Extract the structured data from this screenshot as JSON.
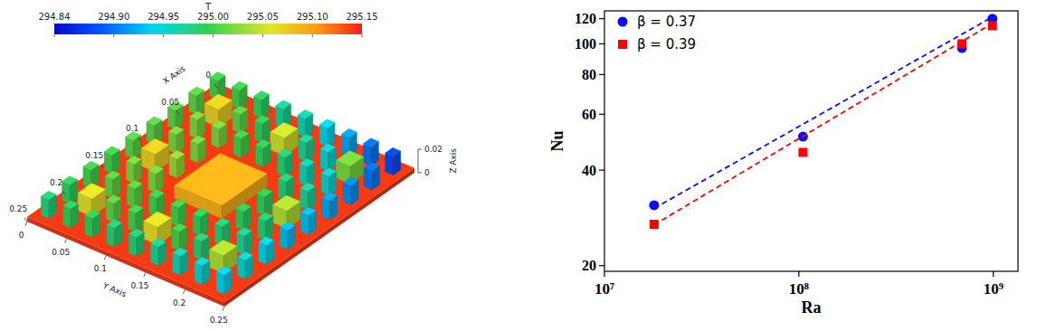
{
  "chart_data": [
    {
      "type": "3d_bar",
      "xlabel": "X Axis",
      "ylabel": "Y Axis",
      "zlabel": "Z Axis",
      "xlim": [
        0,
        0.25
      ],
      "ylim": [
        0,
        0.25
      ],
      "zlim": [
        0,
        0.02
      ],
      "xticks": [
        0,
        0.05,
        0.1,
        0.15,
        0.2,
        0.25
      ],
      "yticks": [
        0,
        0.05,
        0.1,
        0.15,
        0.2,
        0.25
      ],
      "zticks": [
        0,
        0.02
      ],
      "colorbar": {
        "label": "T",
        "range": [
          294.84,
          295.15
        ],
        "ticks": [
          294.84,
          {
            "value": 294.9,
            "label": "294.90"
          },
          294.95,
          {
            "value": 295,
            "label": "295.00"
          },
          295.05,
          {
            "value": 295.1,
            "label": "295.10"
          },
          295.15
        ]
      },
      "base_value": 295.14,
      "blocks": [
        {
          "x": 0.0139,
          "y": 0.0139,
          "size": 0.01,
          "height": 0.02,
          "value": 295.0
        },
        {
          "x": 0.0139,
          "y": 0.0417,
          "size": 0.01,
          "height": 0.02,
          "value": 295.0
        },
        {
          "x": 0.0139,
          "y": 0.0694,
          "size": 0.01,
          "height": 0.02,
          "value": 294.99
        },
        {
          "x": 0.0139,
          "y": 0.0972,
          "size": 0.01,
          "height": 0.02,
          "value": 294.97
        },
        {
          "x": 0.0139,
          "y": 0.125,
          "size": 0.01,
          "height": 0.02,
          "value": 294.96
        },
        {
          "x": 0.0139,
          "y": 0.1528,
          "size": 0.01,
          "height": 0.02,
          "value": 294.94
        },
        {
          "x": 0.0139,
          "y": 0.1806,
          "size": 0.01,
          "height": 0.02,
          "value": 294.92
        },
        {
          "x": 0.0139,
          "y": 0.2083,
          "size": 0.01,
          "height": 0.02,
          "value": 294.9
        },
        {
          "x": 0.0139,
          "y": 0.2361,
          "size": 0.01,
          "height": 0.02,
          "value": 294.88
        },
        {
          "x": 0.0417,
          "y": 0.0139,
          "size": 0.01,
          "height": 0.02,
          "value": 295.01
        },
        {
          "x": 0.0417,
          "y": 0.0417,
          "size": 0.018,
          "height": 0.019,
          "value": 295.07
        },
        {
          "x": 0.0417,
          "y": 0.0694,
          "size": 0.01,
          "height": 0.02,
          "value": 295.01
        },
        {
          "x": 0.0417,
          "y": 0.0972,
          "size": 0.01,
          "height": 0.02,
          "value": 294.99
        },
        {
          "x": 0.0417,
          "y": 0.125,
          "size": 0.018,
          "height": 0.019,
          "value": 295.05
        },
        {
          "x": 0.0417,
          "y": 0.1528,
          "size": 0.01,
          "height": 0.02,
          "value": 294.97
        },
        {
          "x": 0.0417,
          "y": 0.1806,
          "size": 0.01,
          "height": 0.02,
          "value": 294.95
        },
        {
          "x": 0.0417,
          "y": 0.2083,
          "size": 0.018,
          "height": 0.019,
          "value": 295.02
        },
        {
          "x": 0.0417,
          "y": 0.2361,
          "size": 0.01,
          "height": 0.02,
          "value": 294.9
        },
        {
          "x": 0.0694,
          "y": 0.0139,
          "size": 0.01,
          "height": 0.02,
          "value": 295.01
        },
        {
          "x": 0.0694,
          "y": 0.0417,
          "size": 0.01,
          "height": 0.02,
          "value": 295.02
        },
        {
          "x": 0.0694,
          "y": 0.0694,
          "size": 0.01,
          "height": 0.02,
          "value": 295.02
        },
        {
          "x": 0.0694,
          "y": 0.0972,
          "size": 0.01,
          "height": 0.02,
          "value": 295.0
        },
        {
          "x": 0.0694,
          "y": 0.125,
          "size": 0.01,
          "height": 0.02,
          "value": 294.99
        },
        {
          "x": 0.0694,
          "y": 0.1528,
          "size": 0.01,
          "height": 0.02,
          "value": 294.98
        },
        {
          "x": 0.0694,
          "y": 0.1806,
          "size": 0.01,
          "height": 0.02,
          "value": 294.96
        },
        {
          "x": 0.0694,
          "y": 0.2083,
          "size": 0.01,
          "height": 0.02,
          "value": 294.95
        },
        {
          "x": 0.0694,
          "y": 0.2361,
          "size": 0.01,
          "height": 0.02,
          "value": 294.91
        },
        {
          "x": 0.0972,
          "y": 0.0139,
          "size": 0.01,
          "height": 0.02,
          "value": 295.01
        },
        {
          "x": 0.0972,
          "y": 0.0417,
          "size": 0.01,
          "height": 0.02,
          "value": 295.02
        },
        {
          "x": 0.0972,
          "y": 0.0694,
          "size": 0.01,
          "height": 0.02,
          "value": 295.02
        },
        {
          "x": 0.0972,
          "y": 0.1806,
          "size": 0.01,
          "height": 0.02,
          "value": 294.98
        },
        {
          "x": 0.0972,
          "y": 0.2083,
          "size": 0.01,
          "height": 0.02,
          "value": 294.97
        },
        {
          "x": 0.0972,
          "y": 0.2361,
          "size": 0.01,
          "height": 0.02,
          "value": 294.92
        },
        {
          "x": 0.125,
          "y": 0.0139,
          "size": 0.01,
          "height": 0.02,
          "value": 295.01
        },
        {
          "x": 0.125,
          "y": 0.0417,
          "size": 0.018,
          "height": 0.019,
          "value": 295.07
        },
        {
          "x": 0.125,
          "y": 0.0694,
          "size": 0.01,
          "height": 0.02,
          "value": 295.03
        },
        {
          "x": 0.125,
          "y": 0.125,
          "size": 0.06,
          "height": 0.015,
          "value": 295.09
        },
        {
          "x": 0.125,
          "y": 0.1806,
          "size": 0.01,
          "height": 0.02,
          "value": 294.99
        },
        {
          "x": 0.125,
          "y": 0.2083,
          "size": 0.018,
          "height": 0.019,
          "value": 295.04
        },
        {
          "x": 0.125,
          "y": 0.2361,
          "size": 0.01,
          "height": 0.02,
          "value": 294.93
        },
        {
          "x": 0.1528,
          "y": 0.0139,
          "size": 0.01,
          "height": 0.02,
          "value": 295.0
        },
        {
          "x": 0.1528,
          "y": 0.0417,
          "size": 0.01,
          "height": 0.02,
          "value": 295.02
        },
        {
          "x": 0.1528,
          "y": 0.0694,
          "size": 0.01,
          "height": 0.02,
          "value": 295.02
        },
        {
          "x": 0.1528,
          "y": 0.1806,
          "size": 0.01,
          "height": 0.02,
          "value": 294.99
        },
        {
          "x": 0.1528,
          "y": 0.2083,
          "size": 0.01,
          "height": 0.02,
          "value": 294.98
        },
        {
          "x": 0.1528,
          "y": 0.2361,
          "size": 0.01,
          "height": 0.02,
          "value": 294.93
        },
        {
          "x": 0.1806,
          "y": 0.0139,
          "size": 0.01,
          "height": 0.02,
          "value": 295.0
        },
        {
          "x": 0.1806,
          "y": 0.0417,
          "size": 0.01,
          "height": 0.02,
          "value": 295.01
        },
        {
          "x": 0.1806,
          "y": 0.0694,
          "size": 0.01,
          "height": 0.02,
          "value": 295.01
        },
        {
          "x": 0.1806,
          "y": 0.0972,
          "size": 0.01,
          "height": 0.02,
          "value": 295.0
        },
        {
          "x": 0.1806,
          "y": 0.125,
          "size": 0.01,
          "height": 0.02,
          "value": 295.0
        },
        {
          "x": 0.1806,
          "y": 0.1528,
          "size": 0.01,
          "height": 0.02,
          "value": 294.99
        },
        {
          "x": 0.1806,
          "y": 0.1806,
          "size": 0.01,
          "height": 0.02,
          "value": 294.98
        },
        {
          "x": 0.1806,
          "y": 0.2083,
          "size": 0.01,
          "height": 0.02,
          "value": 294.97
        },
        {
          "x": 0.1806,
          "y": 0.2361,
          "size": 0.01,
          "height": 0.02,
          "value": 294.94
        },
        {
          "x": 0.2083,
          "y": 0.0139,
          "size": 0.01,
          "height": 0.02,
          "value": 294.99
        },
        {
          "x": 0.2083,
          "y": 0.0417,
          "size": 0.018,
          "height": 0.019,
          "value": 295.06
        },
        {
          "x": 0.2083,
          "y": 0.0694,
          "size": 0.01,
          "height": 0.02,
          "value": 295.01
        },
        {
          "x": 0.2083,
          "y": 0.0972,
          "size": 0.01,
          "height": 0.02,
          "value": 295.0
        },
        {
          "x": 0.2083,
          "y": 0.125,
          "size": 0.018,
          "height": 0.019,
          "value": 295.06
        },
        {
          "x": 0.2083,
          "y": 0.1528,
          "size": 0.01,
          "height": 0.02,
          "value": 295.0
        },
        {
          "x": 0.2083,
          "y": 0.1806,
          "size": 0.01,
          "height": 0.02,
          "value": 294.98
        },
        {
          "x": 0.2083,
          "y": 0.2083,
          "size": 0.018,
          "height": 0.019,
          "value": 295.04
        },
        {
          "x": 0.2083,
          "y": 0.2361,
          "size": 0.01,
          "height": 0.02,
          "value": 294.95
        },
        {
          "x": 0.2361,
          "y": 0.0139,
          "size": 0.01,
          "height": 0.02,
          "value": 294.98
        },
        {
          "x": 0.2361,
          "y": 0.0417,
          "size": 0.01,
          "height": 0.02,
          "value": 294.99
        },
        {
          "x": 0.2361,
          "y": 0.0694,
          "size": 0.01,
          "height": 0.02,
          "value": 294.99
        },
        {
          "x": 0.2361,
          "y": 0.0972,
          "size": 0.01,
          "height": 0.02,
          "value": 294.98
        },
        {
          "x": 0.2361,
          "y": 0.125,
          "size": 0.01,
          "height": 0.02,
          "value": 294.98
        },
        {
          "x": 0.2361,
          "y": 0.1528,
          "size": 0.01,
          "height": 0.02,
          "value": 294.97
        },
        {
          "x": 0.2361,
          "y": 0.1806,
          "size": 0.01,
          "height": 0.02,
          "value": 294.96
        },
        {
          "x": 0.2361,
          "y": 0.2083,
          "size": 0.01,
          "height": 0.02,
          "value": 294.95
        },
        {
          "x": 0.2361,
          "y": 0.2361,
          "size": 0.01,
          "height": 0.02,
          "value": 294.94
        }
      ]
    },
    {
      "type": "scatter",
      "xlabel": "Ra",
      "ylabel": "Nu",
      "log": true,
      "legend": "upper left",
      "xlim": [
        10000000,
        1340000000
      ],
      "ylim": [
        19.2,
        127
      ],
      "xticks": [
        {
          "value": 10000000,
          "label": "10⁷"
        },
        {
          "value": 100000000,
          "label": "10⁸"
        },
        {
          "value": 1000000000,
          "label": "10⁹"
        }
      ],
      "yticks": [
        20,
        40,
        60,
        80,
        100,
        120
      ],
      "series": [
        {
          "name": "β = 0.37",
          "type": "scatter",
          "marker": "circle",
          "color": "#0b0bff",
          "x": [
            18000000,
            105000000,
            690000000,
            990000000
          ],
          "values": [
            31,
            51,
            97,
            120
          ]
        },
        {
          "name": "β = 0.39",
          "type": "scatter",
          "marker": "square",
          "color": "#ff0000",
          "x": [
            18000000,
            105000000,
            690000000,
            990000000
          ],
          "values": [
            27,
            45.5,
            100,
            114
          ]
        },
        {
          "type": "line",
          "line_style": "dashed",
          "color": "#0b0bff",
          "x": [
            18000000,
            990000000
          ],
          "values": [
            30.3,
            121.5
          ]
        },
        {
          "type": "line",
          "line_style": "dashed",
          "color": "#ff0000",
          "x": [
            18000000,
            990000000
          ],
          "values": [
            26.9,
            116
          ]
        }
      ]
    }
  ]
}
